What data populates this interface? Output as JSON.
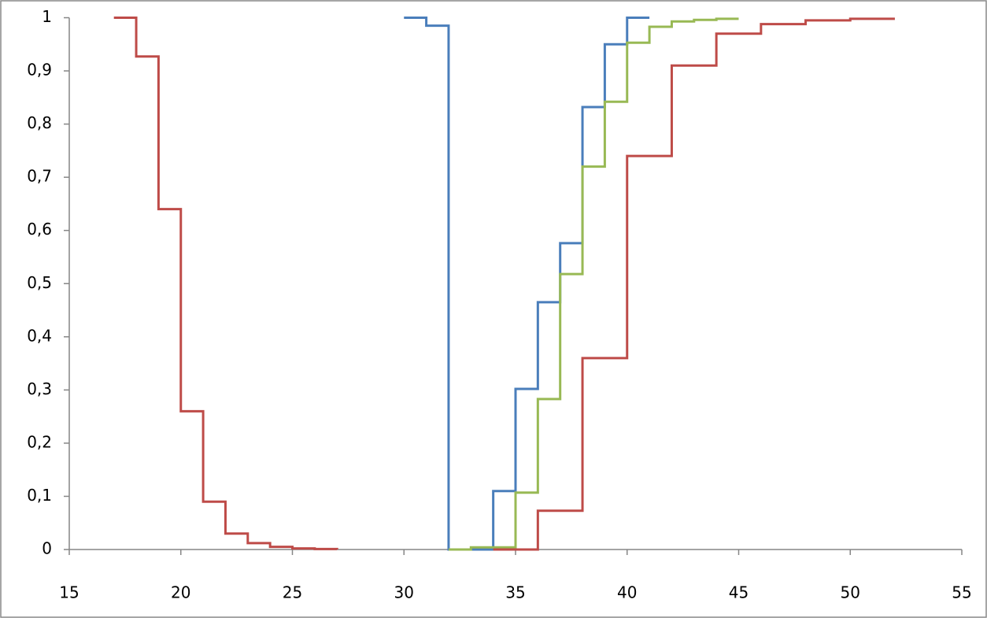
{
  "chart_data": {
    "type": "line",
    "step": "post",
    "xlim": [
      15,
      55
    ],
    "xticks": [
      15,
      20,
      25,
      30,
      35,
      40,
      45,
      50,
      55
    ],
    "ylim": [
      0,
      1
    ],
    "yticks": [
      0,
      {
        "value": 0.1,
        "label": "0,1"
      },
      {
        "value": 0.2,
        "label": "0,2"
      },
      {
        "value": 0.3,
        "label": "0,3"
      },
      {
        "value": 0.4,
        "label": "0,4"
      },
      {
        "value": 0.5,
        "label": "0,5"
      },
      {
        "value": 0.6,
        "label": "0,6"
      },
      {
        "value": 0.7,
        "label": "0,7"
      },
      {
        "value": 0.8,
        "label": "0,8"
      },
      {
        "value": 0.9,
        "label": "0,9"
      },
      1
    ],
    "grid": false,
    "series": [
      {
        "color": "#4a7ebb",
        "x": [
          30,
          31,
          32,
          34,
          35,
          36,
          37,
          38,
          39,
          40,
          41
        ],
        "values": [
          1,
          0.985,
          0,
          0.11,
          0.302,
          0.465,
          0.576,
          0.832,
          0.95,
          1,
          1
        ]
      },
      {
        "color": "#98b954",
        "x": [
          32,
          33,
          35,
          36,
          37,
          38,
          39,
          40,
          41,
          42,
          43,
          44,
          45
        ],
        "values": [
          0,
          0.004,
          0.107,
          0.283,
          0.518,
          0.72,
          0.842,
          0.953,
          0.983,
          0.993,
          0.996,
          0.998,
          0.998
        ]
      },
      {
        "color": "#be4b48",
        "x": [
          17,
          18,
          19,
          20,
          21,
          22,
          23,
          24,
          25,
          26,
          27
        ],
        "values": [
          1,
          0.927,
          0.64,
          0.26,
          0.09,
          0.03,
          0.012,
          0.005,
          0.002,
          0.001,
          0
        ]
      },
      {
        "color": "#be4b48",
        "x": [
          34,
          36,
          38,
          40,
          42,
          44,
          46,
          48,
          50,
          52
        ],
        "values": [
          0,
          0.073,
          0.36,
          0.74,
          0.91,
          0.97,
          0.988,
          0.995,
          0.998,
          0.998
        ]
      }
    ]
  }
}
